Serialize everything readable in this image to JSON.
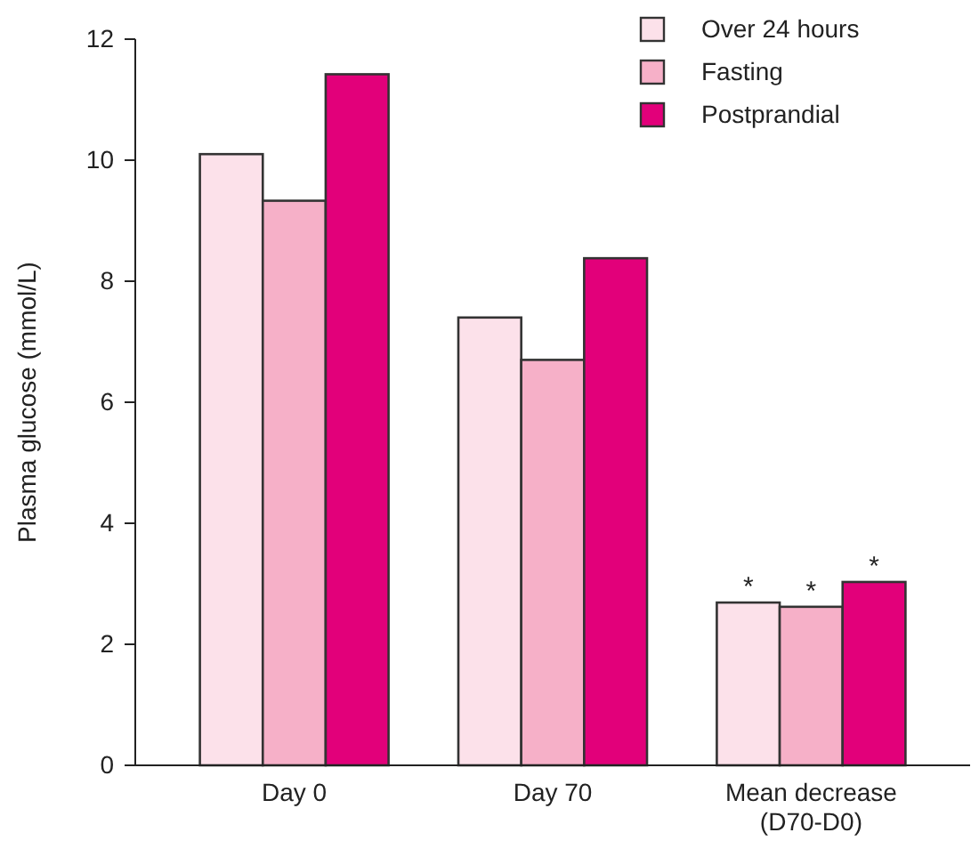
{
  "chart_data": {
    "type": "bar",
    "ylabel": "Plasma glucose (mmol/L)",
    "categories": [
      "Day 0",
      "Day 70",
      "Mean decrease\n(D70-D0)"
    ],
    "series": [
      {
        "name": "Over 24 hours",
        "color": "#fce1ea",
        "values": [
          10.1,
          7.4,
          2.69
        ]
      },
      {
        "name": "Fasting",
        "color": "#f6b0c8",
        "values": [
          9.33,
          6.7,
          2.62
        ]
      },
      {
        "name": "Postprandial",
        "color": "#e2007a",
        "values": [
          11.42,
          8.38,
          3.03
        ]
      }
    ],
    "ylim": [
      0,
      12
    ],
    "yticks": [
      0,
      2,
      4,
      6,
      8,
      10,
      12
    ],
    "legend": "top right",
    "annotations": [
      "*",
      "*",
      "*"
    ]
  }
}
